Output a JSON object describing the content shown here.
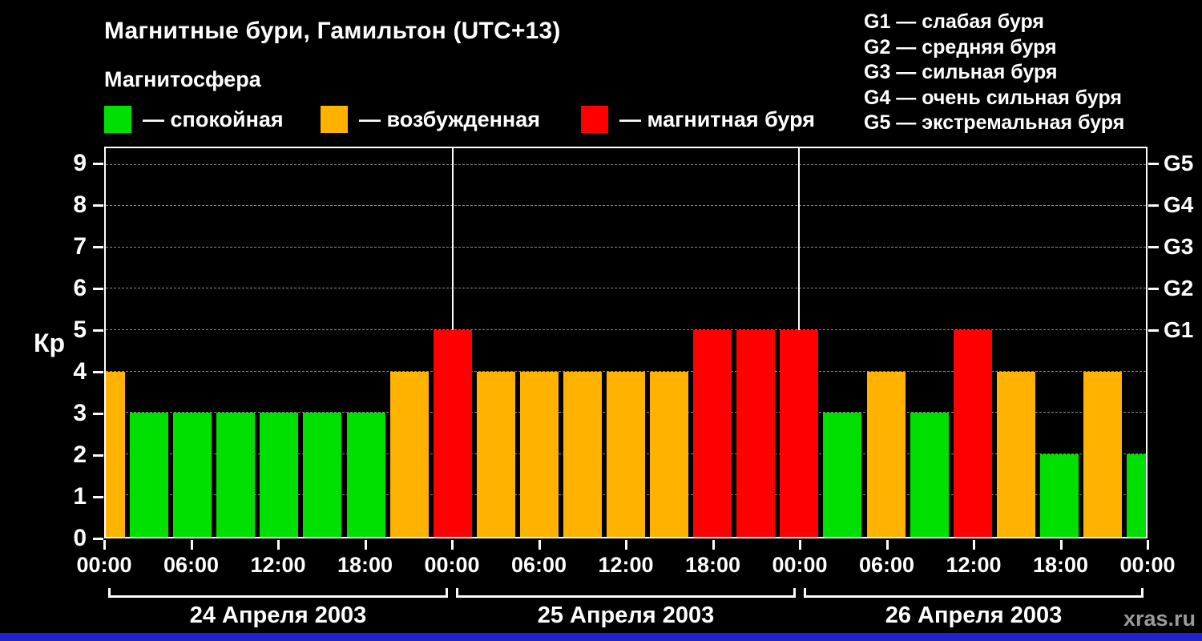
{
  "title": "Магнитные бури, Гамильтон (UTC+13)",
  "legend": {
    "title": "Магнитосфера",
    "items": [
      {
        "key": "quiet",
        "label": "— спокойная"
      },
      {
        "key": "excited",
        "label": "— возбужденная"
      },
      {
        "key": "storm",
        "label": "— магнитная буря"
      }
    ]
  },
  "g_scale": [
    "G1 — слабая буря",
    "G2 — средняя буря",
    "G3 — сильная буря",
    "G4 — очень сильная буря",
    "G5 — экстремальная буря"
  ],
  "watermark": "xras.ru",
  "chart_data": {
    "type": "bar",
    "title": "Магнитные бури, Гамильтон (UTC+13)",
    "ylabel": "Кр",
    "ylim": [
      0,
      9.4
    ],
    "yticks": [
      0,
      1,
      2,
      3,
      4,
      5,
      6,
      7,
      8,
      9
    ],
    "right_axis": [
      {
        "kp": 5,
        "label": "G1"
      },
      {
        "kp": 6,
        "label": "G2"
      },
      {
        "kp": 7,
        "label": "G3"
      },
      {
        "kp": 8,
        "label": "G4"
      },
      {
        "kp": 9,
        "label": "G5"
      }
    ],
    "x_tick_labels": [
      "00:00",
      "06:00",
      "12:00",
      "18:00",
      "00:00",
      "06:00",
      "12:00",
      "18:00",
      "00:00",
      "06:00",
      "12:00",
      "18:00",
      "00:00"
    ],
    "day_labels": [
      "24 Апреля 2003",
      "25 Апреля 2003",
      "26 Апреля 2003"
    ],
    "day_boundaries_slots": [
      8,
      16
    ],
    "slots_per_day": 8,
    "grid": true,
    "legend_position": "top-left",
    "colors": {
      "quiet": "#00e000",
      "excited": "#ffb300",
      "storm": "#ff0000",
      "grid": "#8a8a8a",
      "axis": "#ffffff",
      "background": "#000000",
      "footer_strip": "#2323cb",
      "watermark": "#9a9a9a"
    },
    "bars": [
      {
        "day": "24",
        "time": "00:00",
        "kp": 4,
        "level": "excited"
      },
      {
        "day": "24",
        "time": "03:00",
        "kp": 3,
        "level": "quiet"
      },
      {
        "day": "24",
        "time": "06:00",
        "kp": 3,
        "level": "quiet"
      },
      {
        "day": "24",
        "time": "09:00",
        "kp": 3,
        "level": "quiet"
      },
      {
        "day": "24",
        "time": "12:00",
        "kp": 3,
        "level": "quiet"
      },
      {
        "day": "24",
        "time": "15:00",
        "kp": 3,
        "level": "quiet"
      },
      {
        "day": "24",
        "time": "18:00",
        "kp": 3,
        "level": "quiet"
      },
      {
        "day": "24",
        "time": "21:00",
        "kp": 4,
        "level": "excited"
      },
      {
        "day": "25",
        "time": "00:00",
        "kp": 5,
        "level": "storm"
      },
      {
        "day": "25",
        "time": "03:00",
        "kp": 4,
        "level": "excited"
      },
      {
        "day": "25",
        "time": "06:00",
        "kp": 4,
        "level": "excited"
      },
      {
        "day": "25",
        "time": "09:00",
        "kp": 4,
        "level": "excited"
      },
      {
        "day": "25",
        "time": "12:00",
        "kp": 4,
        "level": "excited"
      },
      {
        "day": "25",
        "time": "15:00",
        "kp": 4,
        "level": "excited"
      },
      {
        "day": "25",
        "time": "18:00",
        "kp": 5,
        "level": "storm"
      },
      {
        "day": "25",
        "time": "21:00",
        "kp": 5,
        "level": "storm"
      },
      {
        "day": "26",
        "time": "00:00",
        "kp": 5,
        "level": "storm"
      },
      {
        "day": "26",
        "time": "03:00",
        "kp": 3,
        "level": "quiet"
      },
      {
        "day": "26",
        "time": "06:00",
        "kp": 4,
        "level": "excited"
      },
      {
        "day": "26",
        "time": "09:00",
        "kp": 3,
        "level": "quiet"
      },
      {
        "day": "26",
        "time": "12:00",
        "kp": 5,
        "level": "storm"
      },
      {
        "day": "26",
        "time": "15:00",
        "kp": 4,
        "level": "excited"
      },
      {
        "day": "26",
        "time": "18:00",
        "kp": 2,
        "level": "quiet"
      },
      {
        "day": "26",
        "time": "21:00",
        "kp": 4,
        "level": "excited"
      },
      {
        "day": "27",
        "time": "00:00",
        "kp": 2,
        "level": "quiet"
      }
    ]
  }
}
